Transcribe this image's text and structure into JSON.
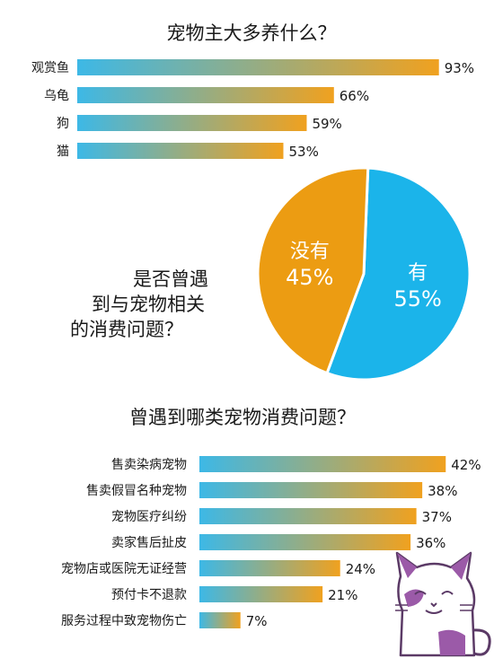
{
  "colors": {
    "background": "#ffffff",
    "text": "#1a1a1a",
    "bar_start": "#3db8e6",
    "bar_end": "#f0a11f",
    "pie_yes": "#1bb4ea",
    "pie_no": "#ec9c12",
    "pie_label": "#ffffff",
    "cat_purple": "#9b5aa8"
  },
  "chart_data": [
    {
      "type": "bar",
      "orientation": "horizontal",
      "title": "宠物主大多养什么？",
      "categories": [
        "观赏鱼",
        "乌龟",
        "狗",
        "猫"
      ],
      "values": [
        93,
        66,
        59,
        53
      ],
      "value_labels": [
        "93%",
        "66%",
        "59%",
        "53%"
      ],
      "unit": "%",
      "xlim": [
        0,
        100
      ]
    },
    {
      "type": "pie",
      "title_lines": [
        "是否曾遇",
        "到与宠物相关",
        "的消费问题？"
      ],
      "slices": [
        {
          "name": "有",
          "value": 55,
          "label": "55%"
        },
        {
          "name": "没有",
          "value": 45,
          "label": "45%"
        }
      ]
    },
    {
      "type": "bar",
      "orientation": "horizontal",
      "title": "曾遇到哪类宠物消费问题？",
      "categories": [
        "售卖染病宠物",
        "售卖假冒名种宠物",
        "宠物医疗纠纷",
        "卖家售后扯皮",
        "宠物店或医院无证经营",
        "预付卡不退款",
        "服务过程中致宠物伤亡"
      ],
      "values": [
        42,
        38,
        37,
        36,
        24,
        21,
        7
      ],
      "value_labels": [
        "42%",
        "38%",
        "37%",
        "36%",
        "24%",
        "21%",
        "7%"
      ],
      "unit": "%",
      "xlim": [
        0,
        50
      ]
    }
  ],
  "decoration": {
    "icon": "cat-illustration-icon"
  }
}
